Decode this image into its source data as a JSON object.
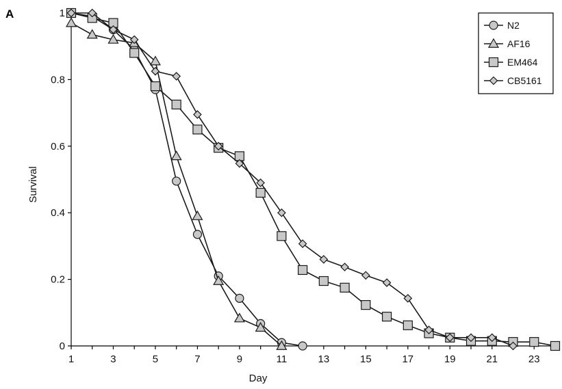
{
  "panel_label": "A",
  "chart_data": {
    "type": "line",
    "xlabel": "Day",
    "ylabel": "Survival",
    "xlim": [
      1,
      24
    ],
    "ylim": [
      0,
      1
    ],
    "x_ticks": [
      1,
      3,
      5,
      7,
      9,
      11,
      13,
      15,
      17,
      19,
      21,
      23
    ],
    "y_ticks": [
      0,
      0.2,
      0.4,
      0.6,
      0.8,
      1
    ],
    "y_tick_labels": [
      "0",
      "0.2",
      "0.4",
      "0.6",
      "0.8",
      "1"
    ],
    "grid": false,
    "legend_position": "top-right",
    "marker_fill": "#c8c8c8",
    "line_color": "#1a1a1a",
    "series": [
      {
        "name": "N2",
        "marker": "circle",
        "x": [
          1,
          2,
          3,
          4,
          5,
          6,
          7,
          8,
          9,
          10,
          11,
          12
        ],
        "y": [
          1.0,
          0.99,
          0.95,
          0.89,
          0.77,
          0.495,
          0.335,
          0.21,
          0.143,
          0.067,
          0.01,
          0.0
        ]
      },
      {
        "name": "AF16",
        "marker": "triangle",
        "x": [
          1,
          2,
          3,
          4,
          5,
          6,
          7,
          8,
          9,
          10,
          11
        ],
        "y": [
          0.97,
          0.935,
          0.92,
          0.91,
          0.855,
          0.57,
          0.39,
          0.195,
          0.083,
          0.055,
          0.0
        ]
      },
      {
        "name": "EM464",
        "marker": "square",
        "x": [
          1,
          2,
          3,
          4,
          5,
          6,
          7,
          8,
          9,
          10,
          11,
          12,
          13,
          14,
          15,
          16,
          17,
          18,
          19,
          20,
          21,
          22,
          23,
          24
        ],
        "y": [
          1.0,
          0.985,
          0.97,
          0.88,
          0.78,
          0.725,
          0.65,
          0.595,
          0.57,
          0.46,
          0.33,
          0.228,
          0.195,
          0.175,
          0.123,
          0.088,
          0.062,
          0.038,
          0.025,
          0.015,
          0.015,
          0.012,
          0.012,
          0.0
        ]
      },
      {
        "name": "CB5161",
        "marker": "diamond",
        "x": [
          1,
          2,
          3,
          4,
          5,
          6,
          7,
          8,
          9,
          10,
          11,
          12,
          13,
          14,
          15,
          16,
          17,
          18,
          19,
          20,
          21,
          22
        ],
        "y": [
          1.0,
          1.0,
          0.95,
          0.92,
          0.825,
          0.81,
          0.695,
          0.6,
          0.548,
          0.49,
          0.4,
          0.307,
          0.26,
          0.237,
          0.212,
          0.19,
          0.143,
          0.048,
          0.025,
          0.025,
          0.025,
          0.0
        ]
      }
    ]
  }
}
